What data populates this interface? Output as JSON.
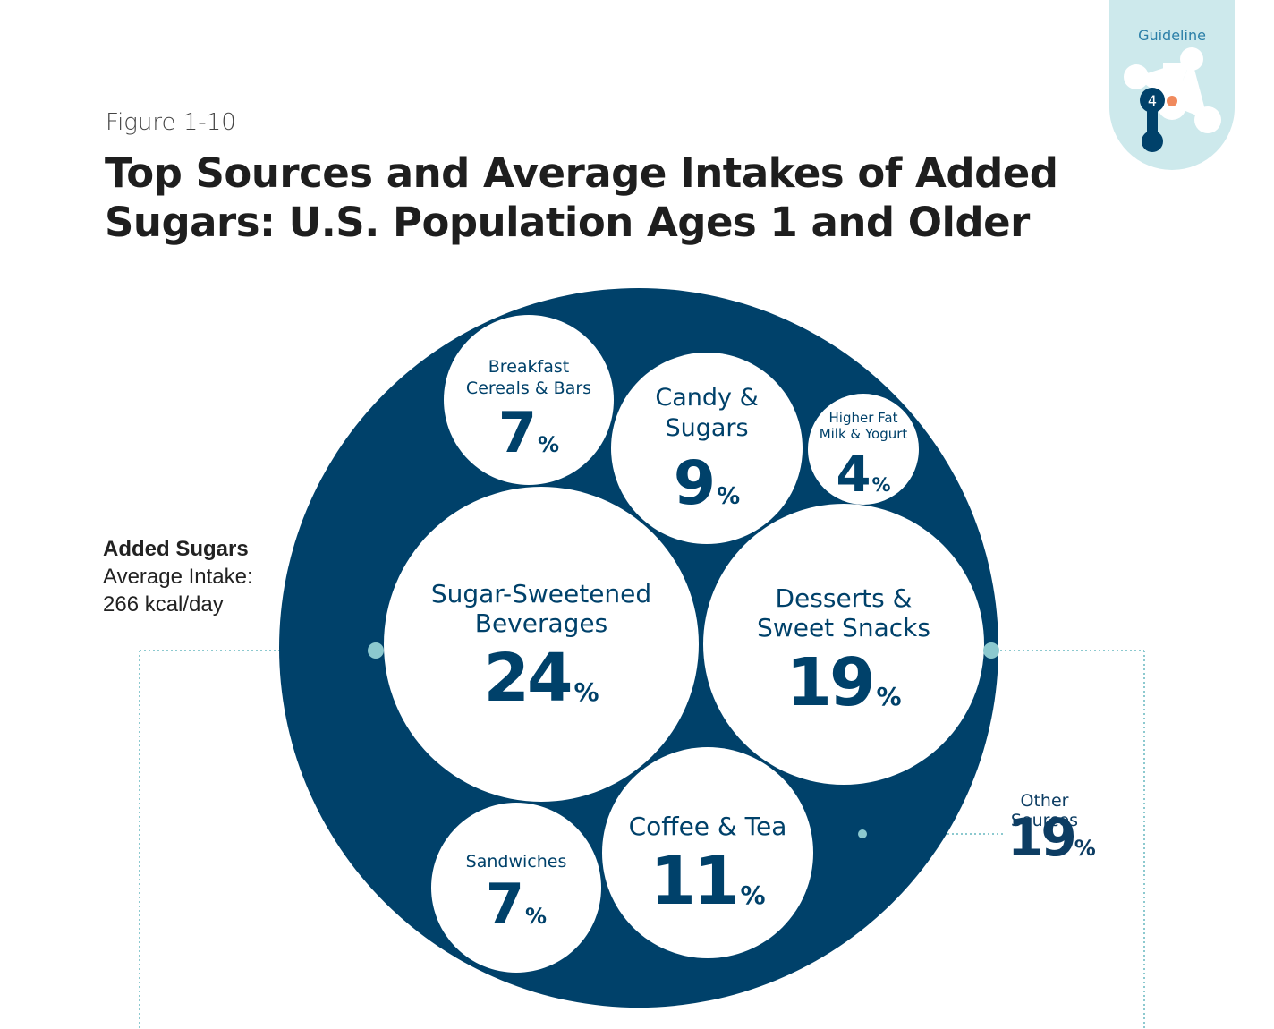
{
  "badge": {
    "label": "Guideline",
    "number": "4"
  },
  "figure_label": "Figure 1-10",
  "title": "Top Sources and Average Intakes of Added Sugars: U.S. Population Ages 1 and Older",
  "average_intake": {
    "heading": "Added Sugars",
    "label": "Average Intake:",
    "value": "266 kcal/day"
  },
  "colors": {
    "navy": "#00416a",
    "light_teal": "#cde9ec",
    "dot_teal": "#8cc9cf",
    "orange": "#f08a5d"
  },
  "chart_data": {
    "type": "bubble",
    "unit": "%",
    "items": [
      {
        "label": [
          "Breakfast",
          "Cereals & Bars"
        ],
        "value": 7
      },
      {
        "label": [
          "Candy &",
          "Sugars"
        ],
        "value": 9
      },
      {
        "label": [
          "Higher Fat",
          "Milk & Yogurt"
        ],
        "value": 4
      },
      {
        "label": [
          "Sugar-Sweetened",
          "Beverages"
        ],
        "value": 24
      },
      {
        "label": [
          "Desserts &",
          "Sweet Snacks"
        ],
        "value": 19
      },
      {
        "label": [
          "Coffee & Tea"
        ],
        "value": 11
      },
      {
        "label": [
          "Sandwiches"
        ],
        "value": 7
      }
    ],
    "other": {
      "label": "Other Sources",
      "value": 19
    }
  }
}
